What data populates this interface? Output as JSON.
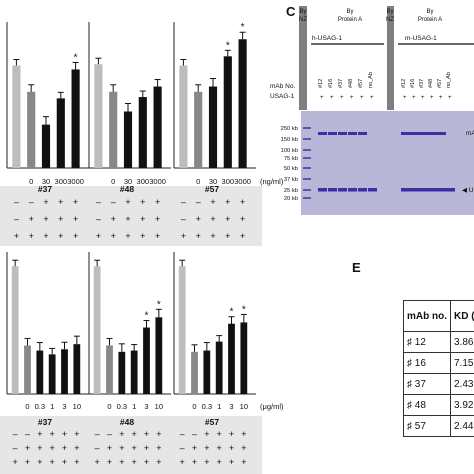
{
  "panel_labels": {
    "c": "C",
    "e": "E"
  },
  "gel": {
    "header_nz": "By\nNZ",
    "header_prot_a": "By\nProtein A",
    "h_label": "h-USAG-1",
    "m_label": "m-USAG-1",
    "row_mab": "mAb No.",
    "row_usag": "USAG-1",
    "lane_labels": [
      "#12",
      "#16",
      "#37",
      "#48",
      "#57",
      "no_Ab"
    ],
    "lane_signs": [
      "+",
      "+",
      "+",
      "+",
      "+",
      "+"
    ],
    "marker_labels": [
      "250 kb",
      "150 kb",
      "100 kb",
      "75 kb",
      "50 kb",
      "37 kb",
      "25 kb",
      "20 kb"
    ],
    "right_labels": {
      "mab": "mA",
      "usag": "US"
    },
    "gel_color": "#b9b6d8",
    "band_color": "#3a2fa6"
  },
  "table_e": {
    "col1": "mAb no.",
    "col2": "KD (n",
    "rows": [
      {
        "mab": "♯ 12",
        "kd": "3.86"
      },
      {
        "mab": "♯ 16",
        "kd": "7.15"
      },
      {
        "mab": "♯ 37",
        "kd": "2.43"
      },
      {
        "mab": "♯ 48",
        "kd": "3.92"
      },
      {
        "mab": "♯ 57",
        "kd": "2.44"
      }
    ]
  },
  "chart_data": [
    {
      "type": "bar",
      "row": "top",
      "group": "#37",
      "x_unit": "(ng/ml)",
      "categories": [
        "",
        "0",
        "30",
        "300",
        "3000"
      ],
      "values": [
        0.78,
        0.58,
        0.33,
        0.53,
        0.75
      ],
      "colors": [
        "#bdbdbd",
        "#888888",
        "#111111",
        "#111111",
        "#111111"
      ],
      "sig": [
        "",
        "",
        "",
        "",
        "*"
      ]
    },
    {
      "type": "bar",
      "row": "top",
      "group": "#48",
      "x_unit": "",
      "categories": [
        "",
        "0",
        "30",
        "300",
        "3000"
      ],
      "values": [
        0.79,
        0.58,
        0.43,
        0.54,
        0.62
      ],
      "colors": [
        "#bdbdbd",
        "#888888",
        "#111111",
        "#111111",
        "#111111"
      ],
      "sig": [
        "",
        "",
        "",
        "",
        ""
      ]
    },
    {
      "type": "bar",
      "row": "top",
      "group": "#57",
      "x_unit": "",
      "categories": [
        "",
        "0",
        "30",
        "300",
        "3000"
      ],
      "values": [
        0.78,
        0.58,
        0.62,
        0.85,
        0.98
      ],
      "colors": [
        "#bdbdbd",
        "#888888",
        "#111111",
        "#111111",
        "#111111"
      ],
      "sig": [
        "",
        "",
        "",
        "*",
        "*"
      ]
    },
    {
      "type": "bar",
      "row": "bottom",
      "group": "#37",
      "x_unit": "(μg/ml)",
      "categories": [
        "",
        "0",
        "0.3",
        "1",
        "3",
        "10"
      ],
      "values": [
        1.0,
        0.38,
        0.34,
        0.31,
        0.35,
        0.39
      ],
      "colors": [
        "#bdbdbd",
        "#888888",
        "#111111",
        "#111111",
        "#111111",
        "#111111"
      ],
      "sig": [
        "",
        "",
        "",
        "",
        "",
        ""
      ]
    },
    {
      "type": "bar",
      "row": "bottom",
      "group": "#48",
      "x_unit": "",
      "categories": [
        "",
        "0",
        "0.3",
        "1",
        "3",
        "10"
      ],
      "values": [
        1.0,
        0.38,
        0.33,
        0.34,
        0.52,
        0.6
      ],
      "colors": [
        "#bdbdbd",
        "#888888",
        "#111111",
        "#111111",
        "#111111",
        "#111111"
      ],
      "sig": [
        "",
        "",
        "",
        "",
        "*",
        "*"
      ]
    },
    {
      "type": "bar",
      "row": "bottom",
      "group": "#57",
      "x_unit": "",
      "categories": [
        "",
        "0",
        "0.3",
        "1",
        "3",
        "10"
      ],
      "values": [
        1.0,
        0.33,
        0.34,
        0.41,
        0.55,
        0.56
      ],
      "colors": [
        "#bdbdbd",
        "#888888",
        "#111111",
        "#111111",
        "#111111",
        "#111111"
      ],
      "sig": [
        "",
        "",
        "",
        "",
        "*",
        "*"
      ]
    }
  ],
  "condition_rows": {
    "top": [
      [
        "–",
        "–",
        "+",
        "+",
        "+"
      ],
      [
        "–",
        "+",
        "+",
        "+",
        "+"
      ],
      [
        "+",
        "+",
        "+",
        "+",
        "+"
      ]
    ],
    "bottom": [
      [
        "–",
        "–",
        "+",
        "+",
        "+",
        "+"
      ],
      [
        "–",
        "+",
        "+",
        "+",
        "+",
        "+"
      ],
      [
        "+",
        "+",
        "+",
        "+",
        "+",
        "+"
      ]
    ]
  }
}
